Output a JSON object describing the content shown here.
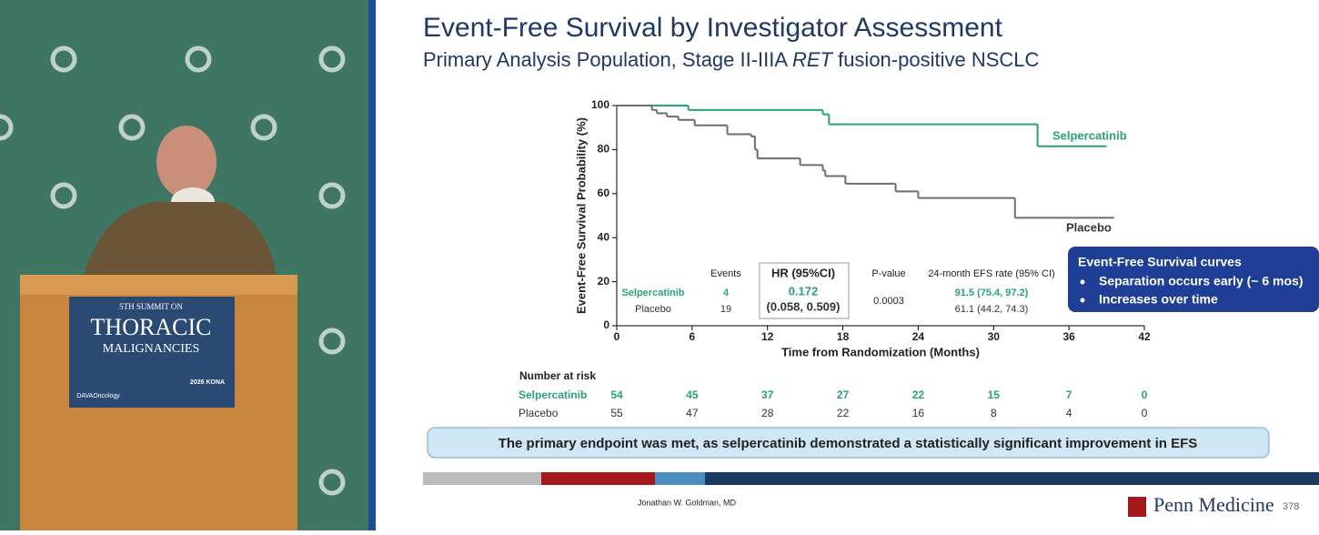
{
  "podium": {
    "line1": "5TH SUMMIT ON",
    "line2": "THORACIC",
    "line3": "MALIGNANCIES",
    "logo": "DAVAOncology",
    "event": "2026 KONA"
  },
  "slide": {
    "title": "Event-Free Survival by Investigator Assessment",
    "subtitle_parts": [
      "Primary Analysis Population, Stage II-IIIA ",
      "RET",
      " fusion-positive NSCLC"
    ],
    "summary_table": {
      "headers": [
        "Events",
        "HR (95%CI)",
        "P-value",
        "24-month EFS rate (95% CI)"
      ],
      "rows": [
        [
          "Selpercatinib",
          "4",
          "0.172",
          "91.5 (75.4, 97.2)"
        ],
        [
          "Placebo",
          "19",
          "(0.058, 0.509)",
          "61.1 (44.2, 74.3)"
        ]
      ],
      "p_value": "0.0003"
    },
    "callout": {
      "title": "Event-Free Survival curves",
      "bullets": [
        "Separation occurs early (~ 6 mos)",
        "Increases over time"
      ]
    },
    "risk_table": {
      "title": "Number at risk",
      "rows": [
        {
          "name": "Selpercatinib",
          "counts": [
            54,
            45,
            37,
            27,
            22,
            15,
            7,
            0
          ]
        },
        {
          "name": "Placebo",
          "counts": [
            55,
            47,
            28,
            22,
            16,
            8,
            4,
            0
          ]
        }
      ]
    },
    "banner": "The primary endpoint was met, as selpercatinib demonstrated a statistically significant improvement in EFS",
    "presenter": "Jonathan W. Goldman, MD",
    "brand": "Penn Medicine",
    "page": "378"
  },
  "chart_data": {
    "type": "line",
    "step": true,
    "x_label": "Time from Randomization (Months)",
    "y_label": "Event-Free Survival Probability (%)",
    "xlim": [
      0,
      42
    ],
    "xticks": [
      0,
      6,
      12,
      18,
      24,
      30,
      36,
      42
    ],
    "ylim": [
      0,
      100
    ],
    "yticks": [
      0,
      20,
      40,
      60,
      80,
      100
    ],
    "series": [
      {
        "name": "Selpercatinib",
        "color": "#2aa079",
        "x": [
          0,
          5.7,
          16.4,
          16.9,
          33.5,
          39
        ],
        "values": [
          100,
          98,
          96,
          91.5,
          81.5,
          81.5
        ]
      },
      {
        "name": "Placebo",
        "color": "#6d6d6d",
        "x": [
          0,
          2.8,
          3.2,
          4,
          4.9,
          6.2,
          8.8,
          10.7,
          11,
          11.2,
          14.6,
          16.4,
          16.6,
          18.2,
          22.2,
          24,
          31.7,
          39.6
        ],
        "values": [
          100,
          98,
          96.5,
          95,
          93.5,
          91,
          87,
          86,
          80,
          76,
          73,
          70.5,
          68,
          64.5,
          61,
          58,
          49,
          49
        ]
      }
    ]
  }
}
